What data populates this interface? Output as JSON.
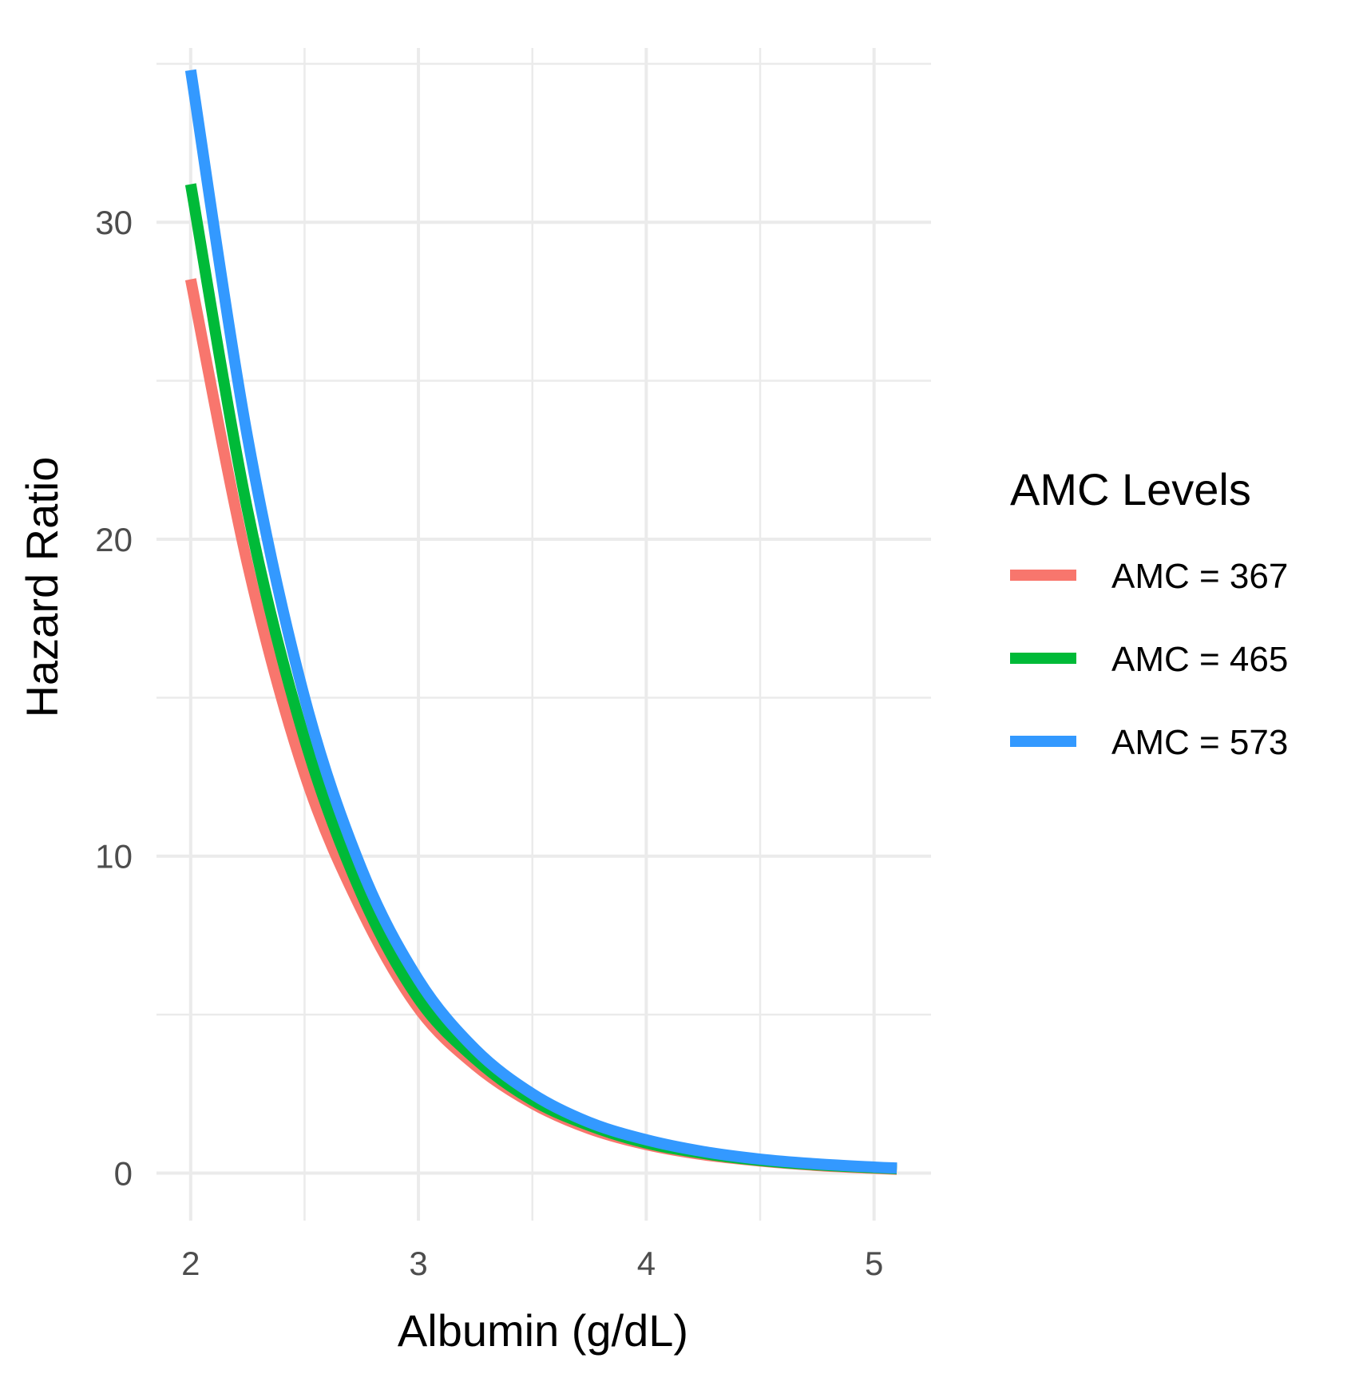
{
  "chart_data": {
    "type": "line",
    "title": "",
    "xlabel": "Albumin (g/dL)",
    "ylabel": "Hazard Ratio",
    "xlim": [
      1.85,
      5.25
    ],
    "ylim": [
      -1.5,
      35.5
    ],
    "x_ticks": [
      2,
      3,
      4,
      5
    ],
    "x_tick_labels": [
      "2",
      "3",
      "4",
      "5"
    ],
    "x_minor_ticks": [
      2.5,
      3.5,
      4.5
    ],
    "y_ticks": [
      0,
      10,
      20,
      30
    ],
    "y_tick_labels": [
      "0",
      "10",
      "20",
      "30"
    ],
    "y_minor_ticks": [
      5,
      15,
      25,
      35
    ],
    "grid": true,
    "legend": {
      "title": "AMC Levels",
      "position": "right"
    },
    "x": [
      2.0,
      2.25,
      2.5,
      2.75,
      3.0,
      3.25,
      3.5,
      3.75,
      4.0,
      4.25,
      4.5,
      4.75,
      5.0,
      5.1
    ],
    "series": [
      {
        "name": "AMC = 367",
        "color": "#F8766D",
        "values": [
          28.2,
          19.2,
          12.6,
          8.3,
          5.2,
          3.4,
          2.2,
          1.4,
          0.9,
          0.58,
          0.38,
          0.24,
          0.15,
          0.12
        ]
      },
      {
        "name": "AMC = 465",
        "color": "#00BA38",
        "values": [
          31.2,
          20.9,
          13.7,
          8.8,
          5.5,
          3.6,
          2.3,
          1.5,
          0.95,
          0.62,
          0.4,
          0.26,
          0.17,
          0.14
        ]
      },
      {
        "name": "AMC = 573",
        "color": "#3399FF",
        "values": [
          34.8,
          23.2,
          15.0,
          9.6,
          6.1,
          3.9,
          2.5,
          1.6,
          1.05,
          0.68,
          0.44,
          0.29,
          0.19,
          0.16
        ]
      }
    ]
  }
}
